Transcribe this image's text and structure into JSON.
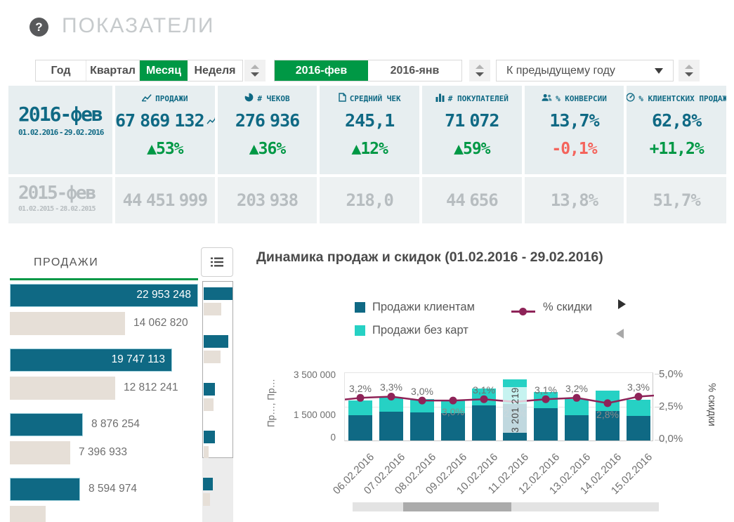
{
  "colors": {
    "green": "#009845",
    "teal": "#0f6984",
    "cyan": "#26d1c4",
    "beige": "#e6dfd7",
    "magenta": "#8e2358",
    "red": "#f4645c",
    "gray_value": "#b7bdc0",
    "title_gray": "#c6cacc"
  },
  "header": {
    "help": "?",
    "title": "ПОКАЗАТЕЛИ"
  },
  "filters": {
    "tabs": [
      {
        "label": "Год",
        "selected": false
      },
      {
        "label": "Квартал",
        "selected": false
      },
      {
        "label": "Месяц",
        "selected": true
      },
      {
        "label": "Неделя",
        "selected": false
      }
    ],
    "periods": [
      {
        "label": "2016-фев",
        "selected": true
      },
      {
        "label": "2016-янв",
        "selected": false
      }
    ],
    "comparison_value": "К предыдущему году"
  },
  "kpi": {
    "columns": [
      {
        "icon": "line-chart-icon",
        "label": "ПРОДАЖИ",
        "key": "sales"
      },
      {
        "icon": "pie-chart-icon",
        "label": "# ЧЕКОВ",
        "key": "checks"
      },
      {
        "icon": "document-icon",
        "label": "СРЕДНИЙ ЧЕК",
        "key": "avg-check"
      },
      {
        "icon": "bar-chart-icon",
        "label": "# ПОКУПАТЕЛЕЙ",
        "key": "buyers"
      },
      {
        "icon": "people-icon",
        "label": "% КОНВЕРСИИ",
        "key": "conversion"
      },
      {
        "icon": "gauge-icon",
        "label": "% КЛИЕНТСКИХ ПРОДАЖ",
        "key": "client-sales"
      }
    ],
    "current": {
      "period": "2016-фев",
      "range": "01.02.2016 - 29.02.2016",
      "values": [
        "67 869 132",
        "276 936",
        "245,1",
        "71 072",
        "13,7%",
        "62,8%"
      ],
      "deltas": [
        {
          "text": "▲53%",
          "type": "up"
        },
        {
          "text": "▲36%",
          "type": "up"
        },
        {
          "text": "▲12%",
          "type": "up"
        },
        {
          "text": "▲59%",
          "type": "up"
        },
        {
          "text": "-0,1%",
          "type": "down"
        },
        {
          "text": "+11,2%",
          "type": "up"
        }
      ]
    },
    "previous": {
      "period": "2015-фев",
      "range": "01.02.2015 - 28.02.2015",
      "values": [
        "44 451 999",
        "203 938",
        "218,0",
        "44 656",
        "13,8%",
        "51,7%"
      ]
    }
  },
  "sales_panel": {
    "title": "ПРОДАЖИ"
  },
  "dynamics_panel": {
    "title": "Динамика продаж и скидок (01.02.2016 - 29.02.2016)",
    "legend": [
      {
        "label": "Продажи клиентам",
        "swatch": "#0f6984",
        "type": "bar"
      },
      {
        "label": "Продажи без карт",
        "swatch": "#26d1c4",
        "type": "bar"
      },
      {
        "label": "% скидки",
        "swatch": "#8e2358",
        "type": "line"
      }
    ]
  },
  "chart_data": [
    {
      "id": "sales-by-group",
      "type": "bar",
      "orientation": "horizontal",
      "title": "ПРОДАЖИ",
      "max": 22953248,
      "bars": [
        {
          "value": 22953248,
          "label": "22 953 248",
          "series": "current",
          "label_inside": true
        },
        {
          "value": 14062820,
          "label": "14 062 820",
          "series": "previous",
          "label_inside": false
        },
        {
          "value": 19747113,
          "label": "19 747 113",
          "series": "current",
          "label_inside": true
        },
        {
          "value": 12812241,
          "label": "12 812 241",
          "series": "previous",
          "label_inside": false
        },
        {
          "value": 8876254,
          "label": "8 876 254",
          "series": "current",
          "label_inside": false
        },
        {
          "value": 7396933,
          "label": "7 396 933",
          "series": "previous",
          "label_inside": false
        },
        {
          "value": 8594974,
          "label": "8 594 974",
          "series": "current",
          "label_inside": false
        },
        {
          "value": 4360000,
          "label": "",
          "series": "previous",
          "label_inside": false,
          "clipped": true
        }
      ],
      "minimap_fractions": [
        1.0,
        0.62,
        0.85,
        0.58,
        0.38,
        0.33,
        0.38,
        0.17,
        0.35,
        0.25
      ]
    },
    {
      "id": "dynamics",
      "type": "combo",
      "title": "Динамика продаж и скидок (01.02.2016 - 29.02.2016)",
      "categories": [
        "06.02.2016",
        "07.02.2016",
        "08.02.2016",
        "09.02.2016",
        "10.02.2016",
        "11.02.2016",
        "12.02.2016",
        "13.02.2016",
        "14.02.2016",
        "15.02.2016"
      ],
      "series": [
        {
          "name": "Продажи клиентам",
          "type": "bar",
          "stack": true,
          "color": "#0f6984",
          "values": [
            1330000,
            1510000,
            1470000,
            1450000,
            1840000,
            1900000,
            1700000,
            1320000,
            1550000,
            1290000
          ]
        },
        {
          "name": "Продажи без карт",
          "type": "bar",
          "stack": true,
          "color": "#26d1c4",
          "values": [
            770000,
            740000,
            700000,
            690000,
            890000,
            1301219,
            850000,
            850000,
            1070000,
            850000
          ]
        },
        {
          "name": "% скидки",
          "type": "line",
          "axis": "right",
          "color": "#8e2358",
          "values": [
            3.2,
            3.3,
            3.0,
            3.0,
            3.1,
            2.9,
            3.1,
            3.2,
            2.8,
            3.3
          ],
          "labels": [
            "3,2%",
            "3,3%",
            "3,0%",
            "3,0%",
            "3,1%",
            "2,9%",
            "3,1%",
            "3,2%",
            "2,8%",
            "3,3%"
          ],
          "label_pos": [
            "above",
            "above",
            "above",
            "below",
            "above",
            "hidden",
            "above",
            "above",
            "below",
            "above"
          ]
        }
      ],
      "selected_index": 5,
      "selected_total_label": "3 201 219",
      "left_axis": {
        "title": "Пр…, Пр…",
        "ticks": [
          "3 500 000",
          "1 500 000",
          "0"
        ],
        "tick_values": [
          3500000,
          1500000,
          0
        ],
        "max": 3500000
      },
      "right_axis": {
        "title": "% скидки",
        "ticks": [
          "5,0%",
          "2,5%",
          "0,0%"
        ],
        "tick_values": [
          5,
          2.5,
          0
        ],
        "max": 5
      },
      "legend_position": "top"
    }
  ]
}
